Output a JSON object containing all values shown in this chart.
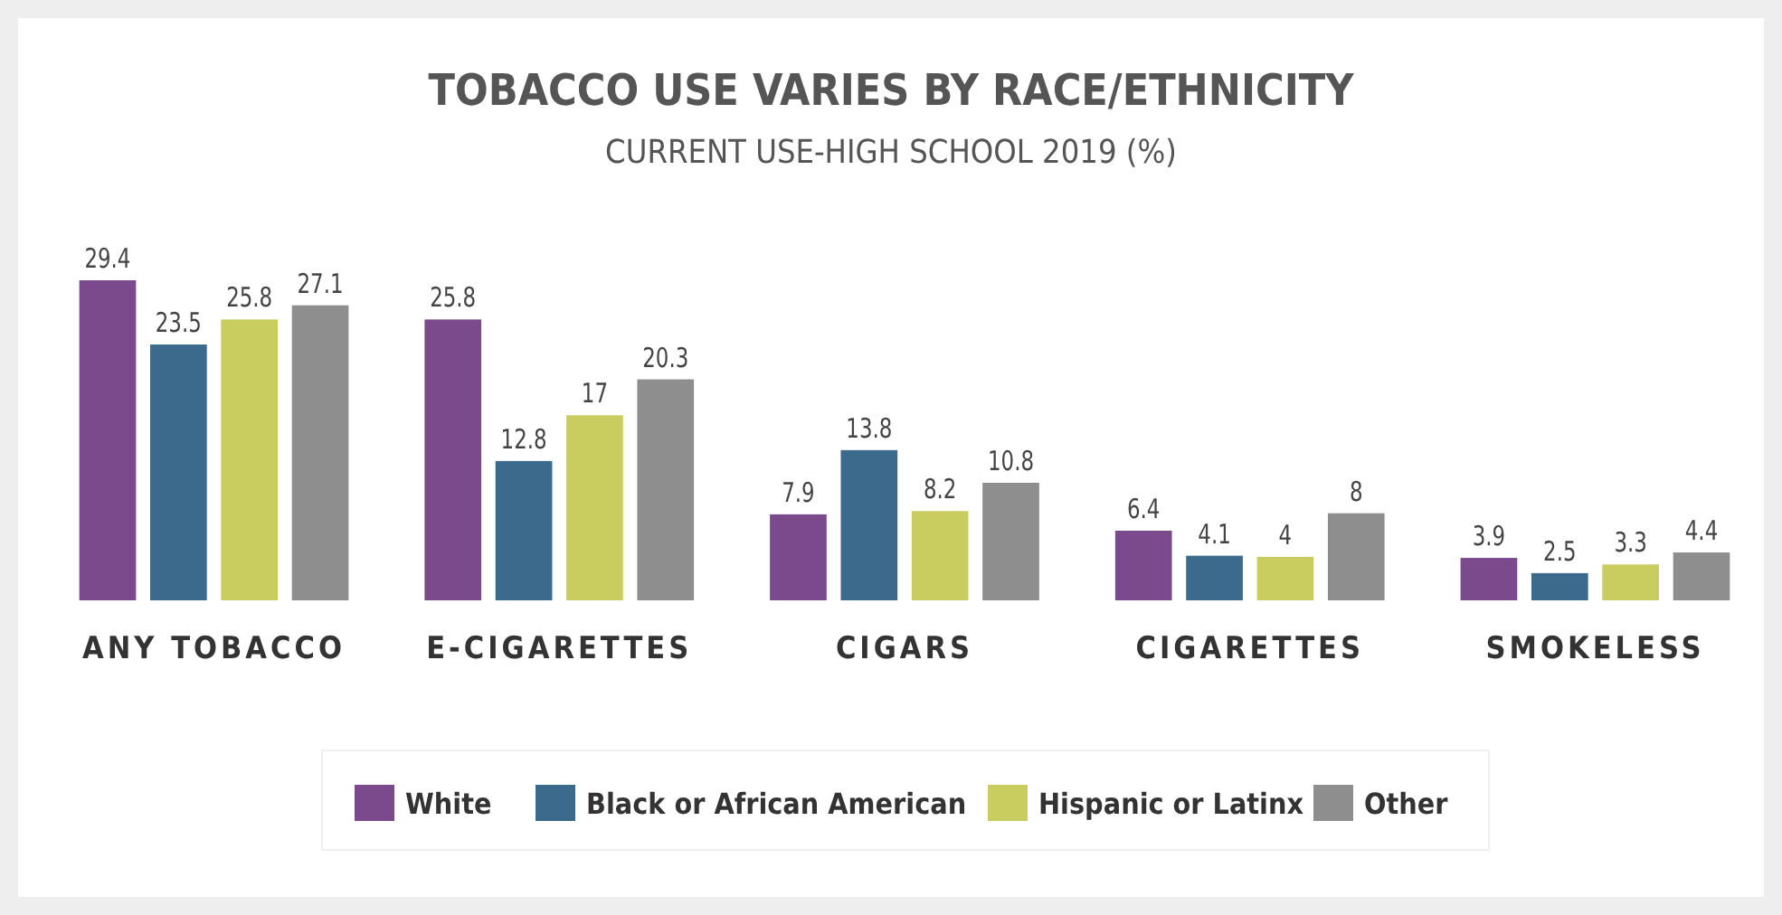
{
  "chart_data": {
    "type": "bar",
    "title": "TOBACCO USE VARIES BY RACE/ETHNICITY",
    "subtitle": "CURRENT USE-HIGH SCHOOL 2019 (%)",
    "categories": [
      "ANY TOBACCO",
      "E-CIGARETTES",
      "CIGARS",
      "CIGARETTES",
      "SMOKELESS"
    ],
    "series": [
      {
        "name": "White",
        "color": "#7b4a8c",
        "values": [
          29.4,
          25.8,
          7.9,
          6.4,
          3.9
        ]
      },
      {
        "name": "Black or African American",
        "color": "#3b6a8c",
        "values": [
          23.5,
          12.8,
          13.8,
          4.1,
          2.5
        ]
      },
      {
        "name": "Hispanic or Latinx",
        "color": "#c9cc5e",
        "values": [
          25.8,
          17,
          8.2,
          4,
          3.3
        ]
      },
      {
        "name": "Other",
        "color": "#8e8e8e",
        "values": [
          27.1,
          20.3,
          10.8,
          8,
          4.4
        ]
      }
    ],
    "data_labels": true,
    "legend": "bottom"
  }
}
